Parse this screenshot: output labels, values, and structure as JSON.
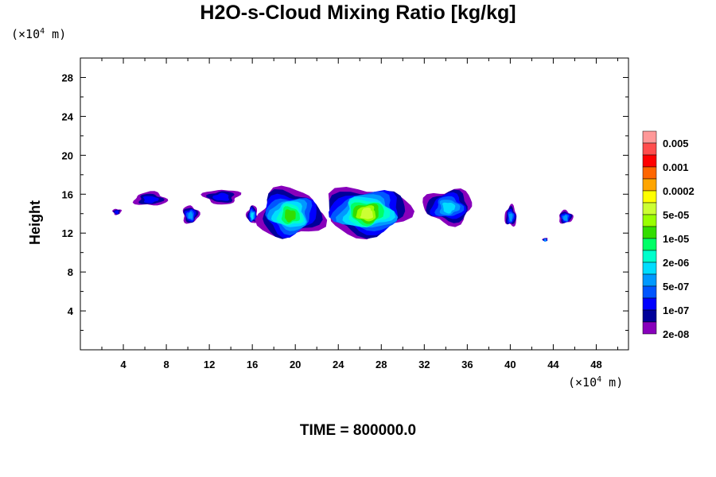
{
  "chart_data": {
    "type": "heatmap",
    "title": "H2O-s-Cloud Mixing Ratio [kg/kg]",
    "ylabel": "Height",
    "y_unit_prefix": "(×10",
    "y_unit_exp": "4",
    "y_unit_suffix": " m)",
    "x_unit_prefix": "(×10",
    "x_unit_exp": "4",
    "x_unit_suffix": " m)",
    "xlim": [
      0,
      51
    ],
    "ylim": [
      0,
      30
    ],
    "x_ticks": [
      "4",
      "8",
      "12",
      "16",
      "20",
      "24",
      "28",
      "32",
      "36",
      "40",
      "44",
      "48"
    ],
    "y_ticks": [
      "4",
      "8",
      "12",
      "16",
      "20",
      "24",
      "28"
    ],
    "colorbar_labels": [
      "0.005",
      "0.001",
      "0.0002",
      "5e-05",
      "1e-05",
      "2e-06",
      "5e-07",
      "1e-07",
      "2e-08"
    ],
    "colorbar_colors": [
      "#ff9999",
      "#ff4d4d",
      "#ff0000",
      "#ff6600",
      "#ffa500",
      "#ffff00",
      "#ccff33",
      "#99ff00",
      "#33dd00",
      "#00ff66",
      "#00ffcc",
      "#00ddff",
      "#0099ff",
      "#0055ff",
      "#0000ff",
      "#000099",
      "#8800bb"
    ],
    "cloud_regions": [
      {
        "x": [
          5.0,
          8.0
        ],
        "y": [
          14.8,
          16.2
        ],
        "max_level": "1e-07"
      },
      {
        "x": [
          9.5,
          11.0
        ],
        "y": [
          13.0,
          14.8
        ],
        "max_level": "5e-07"
      },
      {
        "x": [
          11.5,
          14.8
        ],
        "y": [
          15.0,
          16.5
        ],
        "max_level": "1e-07"
      },
      {
        "x": [
          15.5,
          16.5
        ],
        "y": [
          13.0,
          14.8
        ],
        "max_level": "2e-06"
      },
      {
        "x": [
          16.5,
          22.5
        ],
        "y": [
          11.5,
          16.5
        ],
        "max_level": "5e-05"
      },
      {
        "x": [
          22.8,
          30.5
        ],
        "y": [
          11.8,
          16.7
        ],
        "max_level": "0.0002"
      },
      {
        "x": [
          32.0,
          36.5
        ],
        "y": [
          13.0,
          16.5
        ],
        "max_level": "2e-06"
      },
      {
        "x": [
          39.5,
          40.6
        ],
        "y": [
          12.7,
          14.8
        ],
        "max_level": "5e-07"
      },
      {
        "x": [
          44.5,
          45.8
        ],
        "y": [
          13.0,
          14.3
        ],
        "max_level": "5e-07"
      },
      {
        "x": [
          3.0,
          3.8
        ],
        "y": [
          13.9,
          14.5
        ],
        "max_level": "1e-07"
      },
      {
        "x": [
          43.0,
          43.5
        ],
        "y": [
          11.2,
          11.5
        ],
        "max_level": "5e-07"
      }
    ]
  },
  "footer": {
    "time_label": "TIME = 800000.0"
  }
}
